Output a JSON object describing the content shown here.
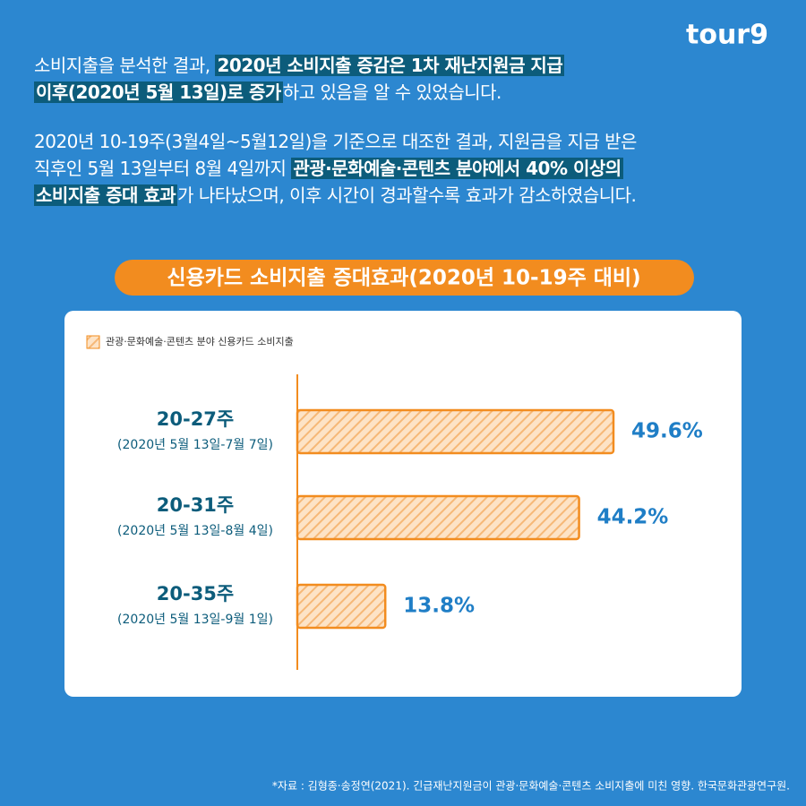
{
  "logo": "tour9",
  "paragraphs": [
    [
      [
        {
          "text": "소비지출을 분석한 결과, ",
          "highlight": false
        },
        {
          "text": "2020년 소비지출 증감은 1차 재난지원금 지급",
          "highlight": true
        }
      ],
      [
        {
          "text": "이후(2020년 5월 13일)로 증가",
          "highlight": true
        },
        {
          "text": "하고 있음을 알 수 있었습니다.",
          "highlight": false
        }
      ]
    ],
    [
      [
        {
          "text": "2020년 10-19주(3월4일~5월12일)을 기준으로 대조한 결과, 지원금을 지급 받은",
          "highlight": false
        }
      ],
      [
        {
          "text": "직후인 5월 13일부터 8월 4일까지 ",
          "highlight": false
        },
        {
          "text": "관광·문화예술·콘텐츠 분야에서 40% 이상의",
          "highlight": true
        }
      ],
      [
        {
          "text": "소비지출 증대 효과",
          "highlight": true
        },
        {
          "text": "가 나타났으며, 이후 시간이 경과할수록 효과가 감소하였습니다.",
          "highlight": false
        }
      ]
    ]
  ],
  "chart_data": {
    "type": "bar",
    "orientation": "horizontal",
    "title": "신용카드 소비지출 증대효과(2020년 10-19주 대비)",
    "categories": [
      "20-27주",
      "20-31주",
      "20-35주"
    ],
    "periods": [
      "(2020년 5월 13일-7월 7일)",
      "(2020년 5월 13일-8월 4일)",
      "(2020년 5월 13일-9월 1일)"
    ],
    "series": [
      {
        "name": "관광·문화예술·콘텐츠 분야 신용카드 소비지출",
        "color": "#f28c1f",
        "values": [
          49.6,
          44.2,
          13.8
        ],
        "value_labels": [
          "49.6%",
          "44.2%",
          "13.8%"
        ]
      }
    ]
  },
  "source": "*자료 : 김형종·송정연(2021). 긴급재난지원금이 관광·문화예술·콘텐츠 소비지출에 미친 영향. 한국문화관광연구원."
}
